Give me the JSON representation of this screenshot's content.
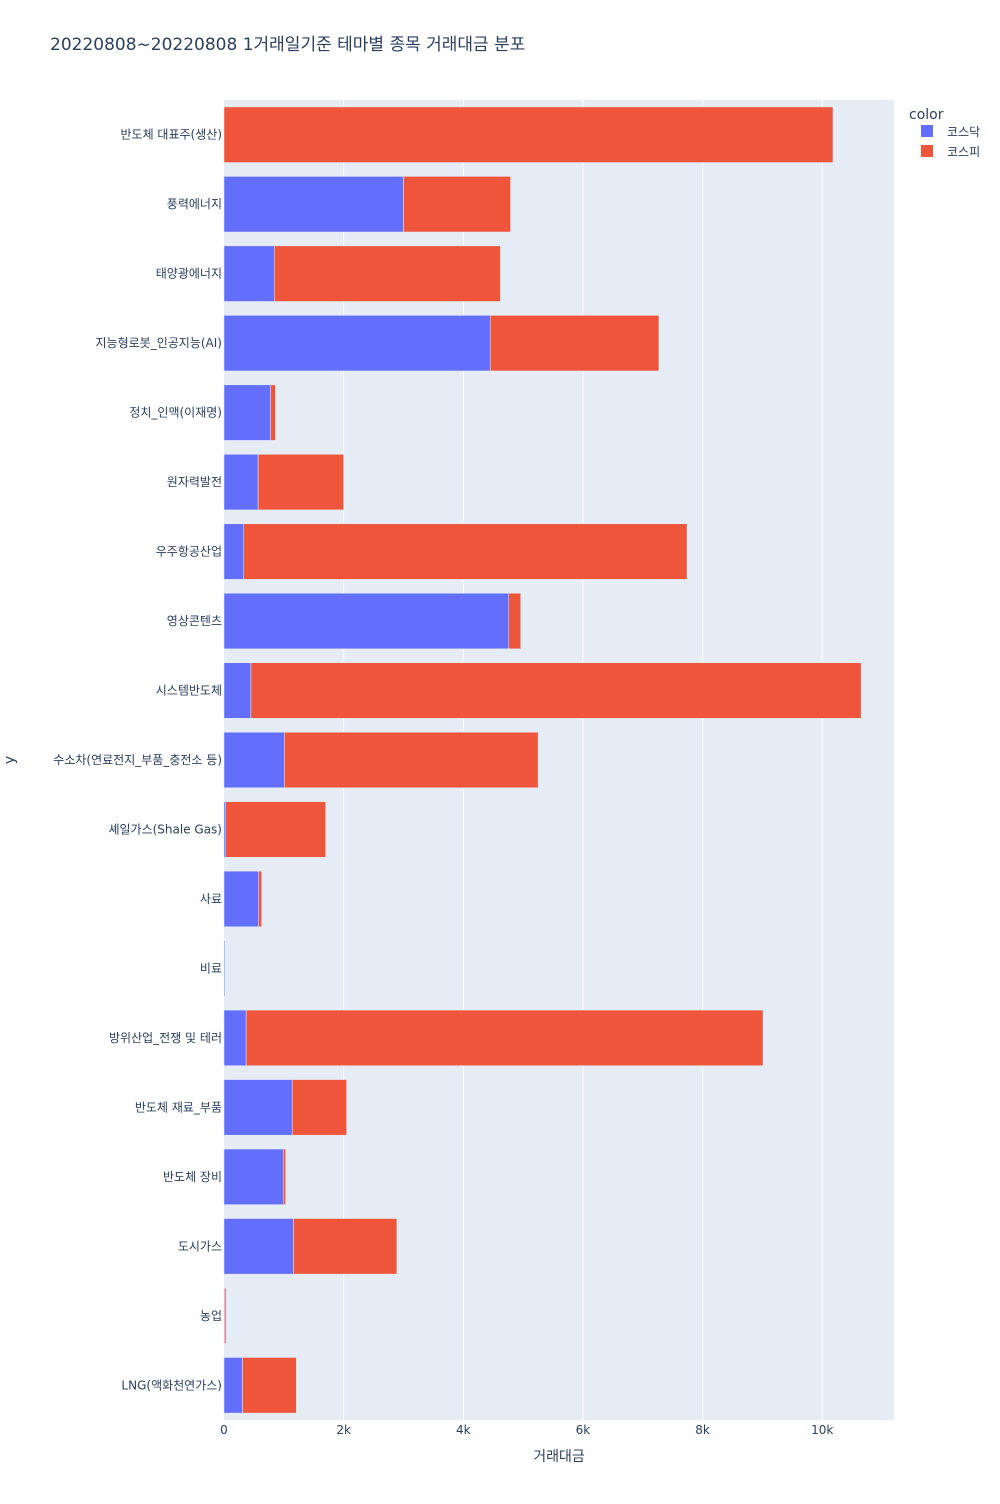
{
  "chart_data": {
    "type": "bar",
    "orientation": "horizontal",
    "barmode": "stack",
    "title": "20220808~20220808 1거래일기준 테마별 종목 거래대금 분포",
    "xlabel": "거래대금",
    "ylabel": "y",
    "xlim": [
      0,
      11200
    ],
    "x_ticks": [
      0,
      2000,
      4000,
      6000,
      8000,
      10000
    ],
    "x_tick_labels": [
      "0",
      "2k",
      "4k",
      "6k",
      "8k",
      "10k"
    ],
    "grid": true,
    "legend_title": "color",
    "legend_position": "top-right",
    "background_color": "#E5ECF6",
    "categories": [
      "반도체 대표주(생산)",
      "풍력에너지",
      "태양광에너지",
      "지능형로봇_인공지능(AI)",
      "정치_인맥(이재명)",
      "원자력발전",
      "우주항공산업",
      "영상콘텐츠",
      "시스템반도체",
      "수소차(연료전지_부품_충전소 등)",
      "셰일가스(Shale Gas)",
      "사료",
      "비료",
      "방위산업_전쟁 및 테러",
      "반도체 재료_부품",
      "반도체 장비",
      "도시가스",
      "농업",
      "LNG(액화천연가스)"
    ],
    "series": [
      {
        "name": "코스닥",
        "color": "#636EFA",
        "values": [
          0,
          3000,
          840,
          4450,
          780,
          570,
          330,
          4760,
          450,
          1010,
          30,
          580,
          15,
          370,
          1140,
          990,
          1160,
          15,
          310
        ]
      },
      {
        "name": "코스피",
        "color": "#EF553B",
        "values": [
          10180,
          1790,
          3780,
          2820,
          80,
          1430,
          7410,
          200,
          10200,
          4240,
          1670,
          50,
          0,
          8640,
          910,
          40,
          1730,
          20,
          900
        ]
      }
    ]
  }
}
